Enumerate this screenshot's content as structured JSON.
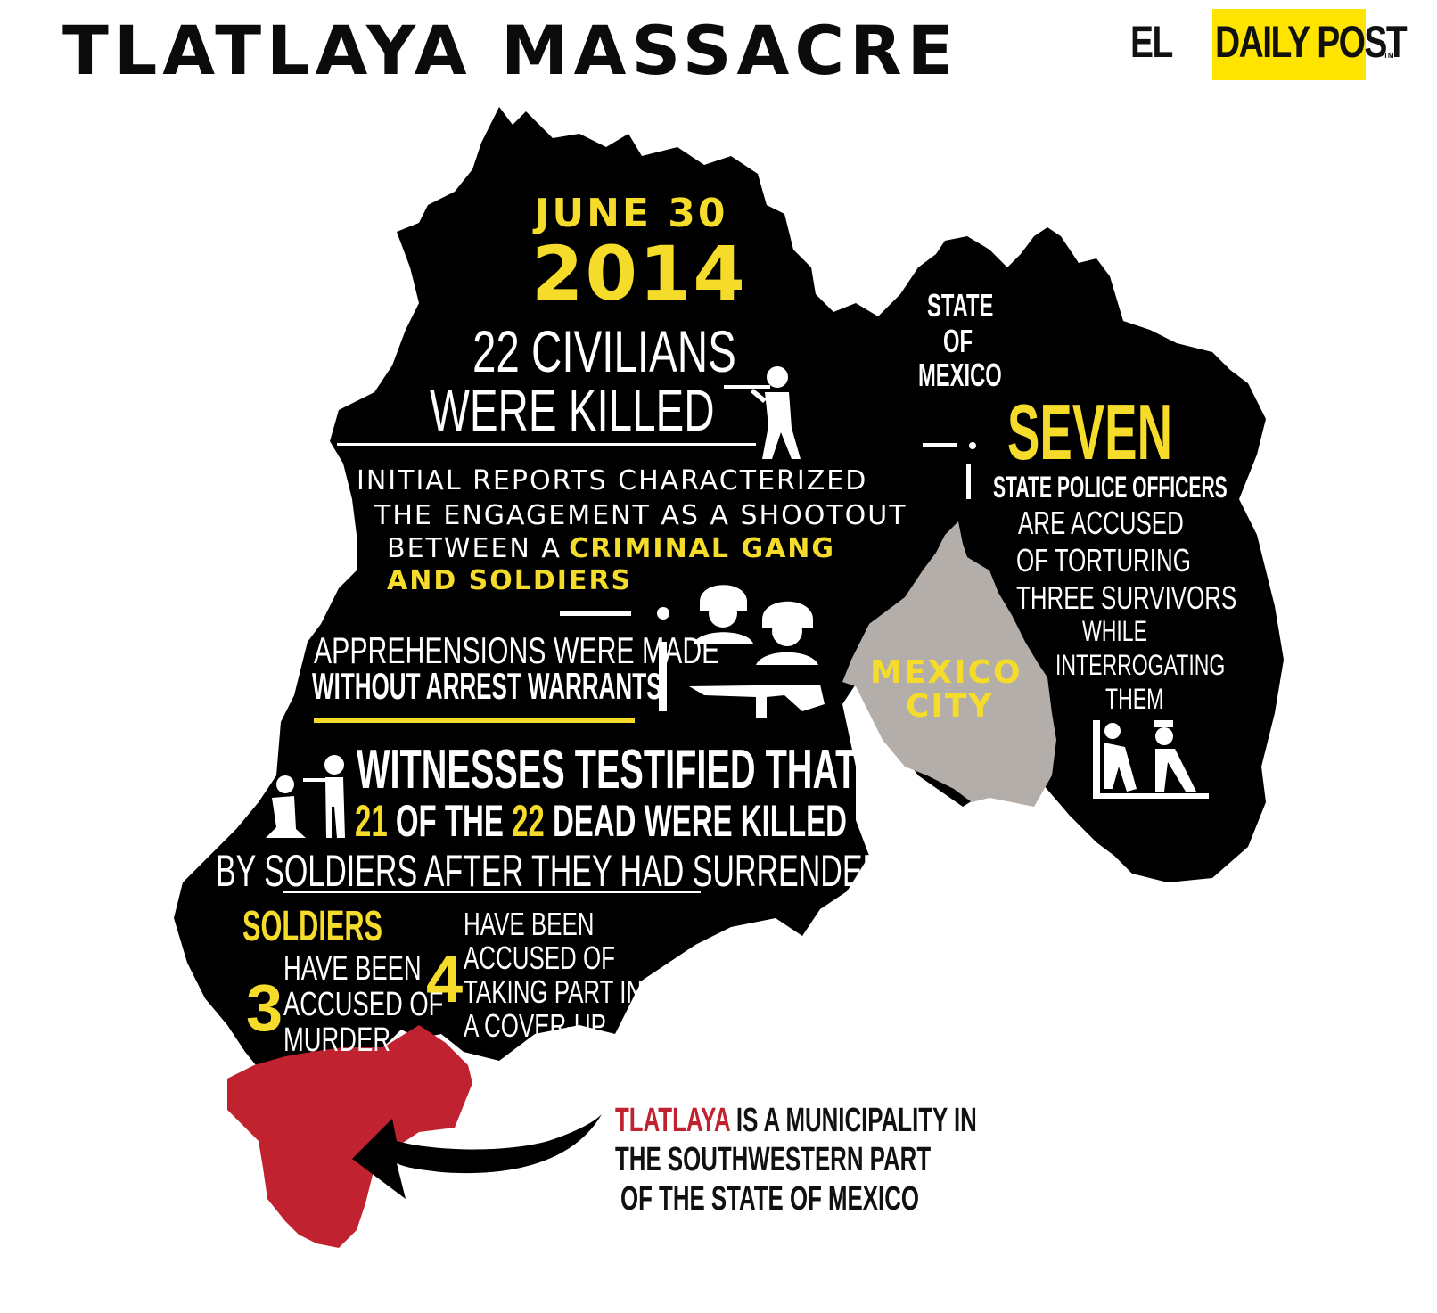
{
  "header": {
    "title": "TLATLAYA MASSACRE",
    "logo_prefix": "EL",
    "logo_highlight": "DAILY POST",
    "logo_tm": "TM"
  },
  "colors": {
    "map": "#000000",
    "accent_yellow": "#f5dc2b",
    "mexico_city_gray": "#b3aeaa",
    "tlatlaya_red": "#c0232f",
    "text_white": "#ffffff"
  },
  "date": {
    "month_day": "JUNE 30",
    "year": "2014"
  },
  "civilians": {
    "line1": "22 CIVILIANS",
    "line2": "WERE KILLED"
  },
  "initial_reports": {
    "line1": "INITIAL REPORTS CHARACTERIZED",
    "line2": "THE ENGAGEMENT AS A SHOOTOUT",
    "line3_plain": "BETWEEN A",
    "line3_highlight": "CRIMINAL GANG",
    "line4_highlight": "AND SOLDIERS"
  },
  "apprehensions": {
    "line1": "APPREHENSIONS WERE MADE",
    "line2": "WITHOUT ARREST WARRANTS"
  },
  "witnesses": {
    "line1": "WITNESSES TESTIFIED THAT",
    "num_a": "21",
    "mid": "OF THE",
    "num_b": "22",
    "end": "DEAD WERE KILLED",
    "line3": "BY SOLDIERS AFTER THEY HAD SURRENDERED"
  },
  "soldiers": {
    "label": "SOLDIERS",
    "murder_count": "3",
    "murder_lines": [
      "HAVE BEEN",
      "ACCUSED OF",
      "MURDER"
    ],
    "coverup_count": "4",
    "coverup_lines": [
      "HAVE BEEN",
      "ACCUSED OF",
      "TAKING PART IN",
      "A COVER-UP"
    ]
  },
  "state_label": [
    "STATE",
    "OF",
    "MEXICO"
  ],
  "police": {
    "count": "SEVEN",
    "subtitle": "STATE POLICE OFFICERS",
    "lines": [
      "ARE ACCUSED",
      "OF TORTURING",
      "THREE SURVIVORS",
      "WHILE",
      "INTERROGATING",
      "THEM"
    ]
  },
  "mexico_city": [
    "MEXICO",
    "CITY"
  ],
  "tlatlaya_note": {
    "highlight": "TLATLAYA",
    "line1_rest": "IS A MUNICIPALITY IN",
    "line2": "THE SOUTHWESTERN PART",
    "line3": "OF THE STATE OF MEXICO"
  },
  "icons": [
    "rifleman-icon",
    "soldier-helmet-icon",
    "rifle-icon",
    "execution-icon",
    "police-torture-icon",
    "curved-arrow-icon"
  ]
}
